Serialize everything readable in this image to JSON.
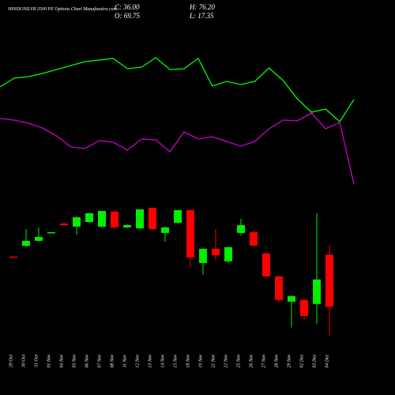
{
  "chart_data": {
    "type": "candlestick",
    "title": "HINDUNILVR 2500  PE Options  Chart Munafasutra.com",
    "stats": [
      "C: 36.00",
      "H: 76.20",
      "O: 69.75",
      "L: 17.35"
    ],
    "categories": [
      "29 Oct",
      "30 Oct",
      "31 Oct",
      "01 Nov",
      "04 Nov",
      "05 Nov",
      "06 Nov",
      "07 Nov",
      "08 Nov",
      "11 Nov",
      "12 Nov",
      "13 Nov",
      "14 Nov",
      "15 Nov",
      "18 Nov",
      "19 Nov",
      "21 Nov",
      "22 Nov",
      "25 Nov",
      "26 Nov",
      "27 Nov",
      "28 Nov",
      "29 Nov",
      "02 Dec",
      "03 Dec",
      "04 Dec"
    ],
    "open": [
      68.6,
      75.5,
      78.8,
      84.2,
      90.0,
      88.0,
      91.0,
      88.0,
      97.7,
      87.5,
      86.9,
      100.25,
      83.9,
      90.5,
      98.7,
      64.4,
      73.6,
      65.5,
      83.9,
      84.4,
      70.6,
      55.7,
      39.3,
      40.4,
      37.8,
      69.75
    ],
    "high": [
      68.6,
      86.4,
      87.5,
      84.6,
      91.0,
      94.5,
      97.0,
      98.2,
      98.5,
      89.5,
      99.2,
      100.25,
      88.0,
      99.0,
      99.2,
      74.0,
      86.4,
      75.0,
      93.1,
      85.5,
      71.0,
      56.0,
      43.5,
      41.0,
      96.7,
      76.2
    ],
    "low": [
      68.0,
      75.0,
      78.0,
      84.0,
      88.5,
      82.9,
      90.5,
      87.5,
      86.4,
      86.9,
      86.4,
      86.0,
      78.2,
      90.0,
      61.9,
      56.8,
      66.0,
      64.5,
      82.5,
      75.0,
      55.2,
      38.8,
      22.5,
      27.6,
      25.0,
      17.35
    ],
    "close": [
      68.0,
      78.8,
      81.3,
      84.4,
      89.0,
      94.1,
      96.7,
      98.2,
      87.5,
      89.0,
      99.2,
      86.4,
      87.5,
      98.7,
      68.0,
      73.6,
      69.5,
      74.7,
      89.0,
      75.7,
      55.7,
      40.4,
      42.9,
      30.1,
      53.7,
      36.0
    ],
    "up_color": "#00ee00",
    "down_color": "#ff0000",
    "ylim": [
      10,
      110
    ],
    "lines_ylim": [
      0,
      100
    ],
    "series": [
      {
        "color": "#00ff00",
        "values": [
          70,
          75.5,
          76.5,
          78.5,
          81,
          83.5,
          86,
          87,
          88,
          81.5,
          82.5,
          88.5,
          81,
          81.5,
          88,
          70.5,
          73.5,
          71.5,
          73.5,
          82,
          74,
          62.5,
          54,
          56,
          48,
          62
        ]
      },
      {
        "color": "#cc00cc",
        "values": [
          50,
          49,
          47,
          44,
          39,
          32,
          31,
          36,
          35,
          30,
          37,
          36.5,
          29,
          41.5,
          37,
          38.5,
          35.5,
          32.5,
          35.5,
          43.5,
          49,
          48.5,
          53.5,
          43.5,
          47.5,
          8.5
        ]
      }
    ]
  }
}
